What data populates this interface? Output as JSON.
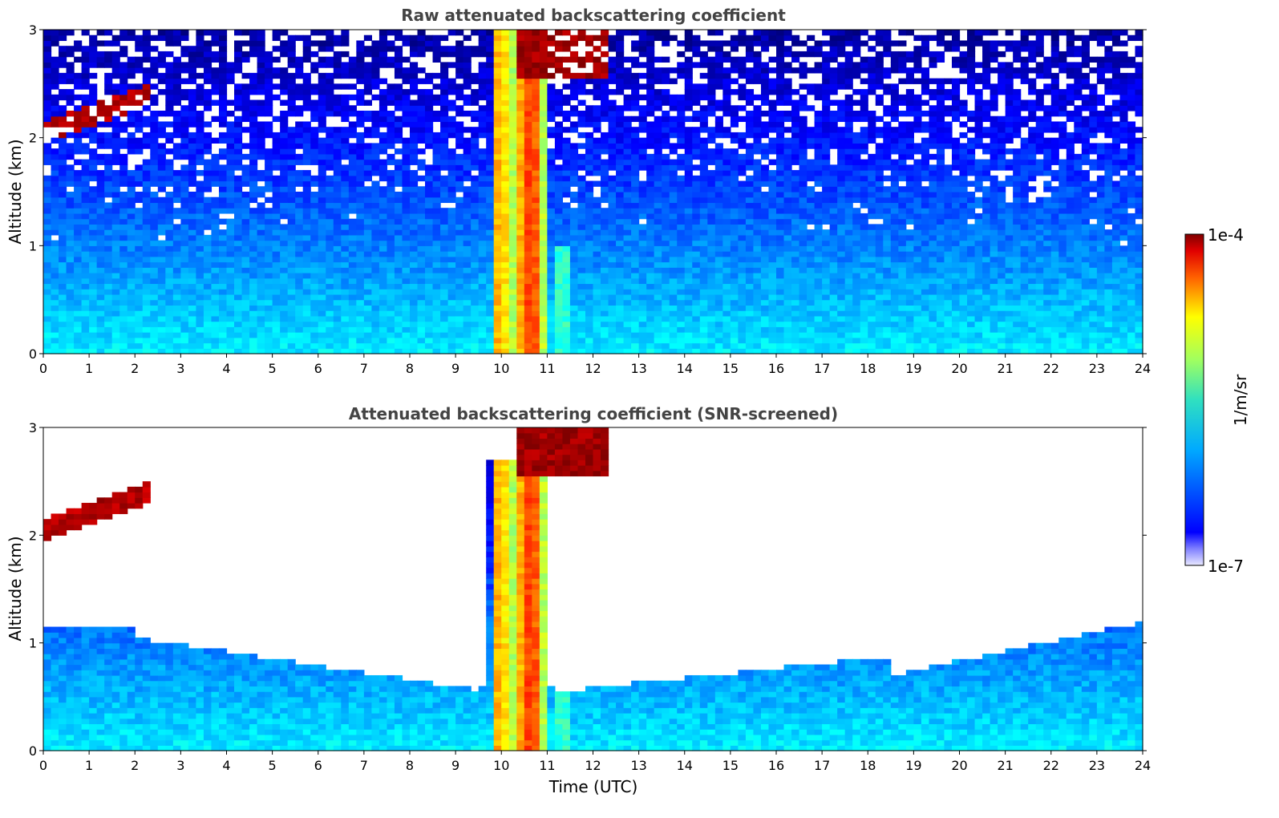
{
  "chart_data": [
    {
      "type": "heatmap",
      "title": "Raw attenuated backscattering coefficient",
      "xlabel": "",
      "ylabel": "Altitude (km)",
      "xlim": [
        0,
        24
      ],
      "ylim": [
        0,
        3
      ],
      "x_ticks": [
        0,
        1,
        2,
        3,
        4,
        5,
        6,
        7,
        8,
        9,
        10,
        11,
        12,
        13,
        14,
        15,
        16,
        17,
        18,
        19,
        20,
        21,
        22,
        23,
        24
      ],
      "y_ticks": [
        0,
        1,
        2,
        3
      ],
      "screened": false
    },
    {
      "type": "heatmap",
      "title": "Attenuated backscattering coefficient (SNR-screened)",
      "xlabel": "Time (UTC)",
      "ylabel": "Altitude (km)",
      "xlim": [
        0,
        24
      ],
      "ylim": [
        0,
        3
      ],
      "x_ticks": [
        0,
        1,
        2,
        3,
        4,
        5,
        6,
        7,
        8,
        9,
        10,
        11,
        12,
        13,
        14,
        15,
        16,
        17,
        18,
        19,
        20,
        21,
        22,
        23,
        24
      ],
      "y_ticks": [
        0,
        1,
        2,
        3
      ],
      "screened": true
    }
  ],
  "colorbar": {
    "label": "1/m/sr",
    "max_label": "1e-4",
    "min_label": "1e-7",
    "scale": "log",
    "range": [
      1e-07,
      0.0001
    ],
    "colormap": "jet"
  },
  "features": {
    "thick_aerosol_plume_utc": [
      9.8,
      11.0
    ],
    "elevated_layer_utc": [
      0,
      2.2
    ],
    "elevated_layer_km": [
      2.0,
      2.35
    ],
    "boundary_layer_top_km_screened": [
      0.5,
      1.3
    ]
  },
  "colors": {
    "title_text": "#444444",
    "axis": "#000000",
    "background": "#ffffff"
  }
}
